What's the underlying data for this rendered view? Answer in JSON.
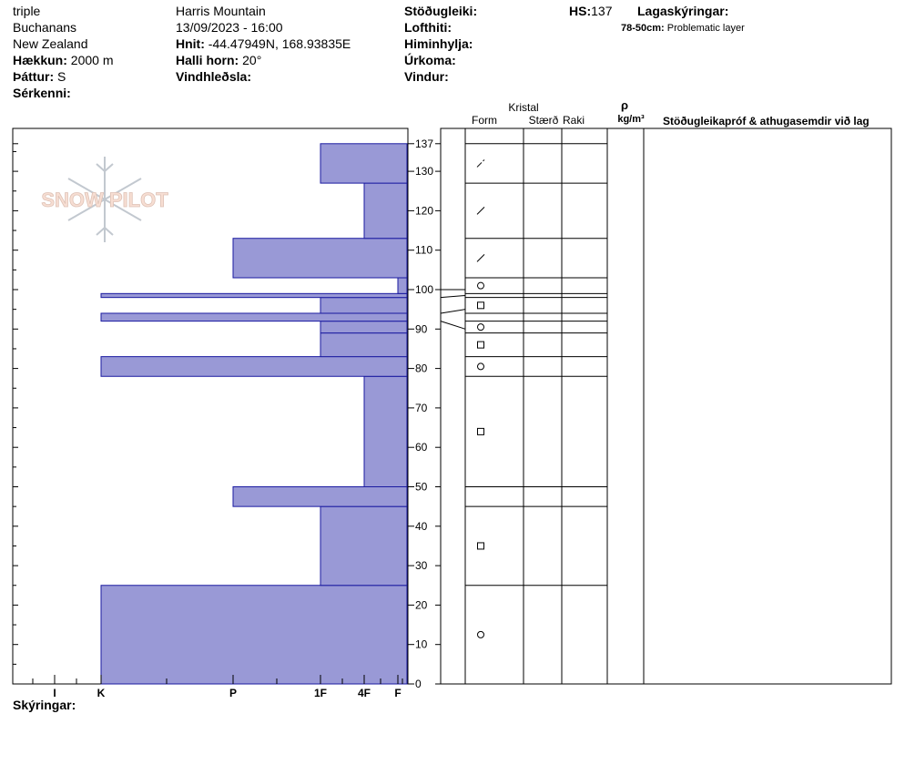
{
  "header": {
    "col1": [
      "triple",
      "Buchanans",
      "New Zealand"
    ],
    "elevation_label": "Hækkun:",
    "elevation_value": "2000 m",
    "aspect_label": "Þáttur:",
    "aspect_value": "S",
    "features_label": "Sérkenni:",
    "location": "Harris Mountain",
    "datetime": "13/09/2023 - 16:00",
    "coords_label": "Hnit:",
    "coords_value": "-44.47949N, 168.93835E",
    "slope_label": "Halli horn:",
    "slope_value": "20°",
    "wind_load_label": "Vindhleðsla:",
    "stability_label": "Stöðugleiki:",
    "air_temp_label": "Lofthiti:",
    "sky_label": "Himinhylja:",
    "precip_label": "Úrkoma:",
    "wind_label": "Vindur:",
    "hs_label": "HS:",
    "hs_value": "137",
    "legend_label": "Lagaskýringar:",
    "layer_note_range": "78-50cm:",
    "layer_note_text": "Problematic layer"
  },
  "notes_label": "Skýringar:",
  "logo_text": "SNOW PILOT",
  "table_headers": {
    "crystal": "Kristal",
    "form": "Form",
    "size": "Stærð",
    "moisture": "Raki",
    "density_symbol": "ρ",
    "density_unit": "kg/m³",
    "comments": "Stöðugleikapróf & athugasemdir við lag"
  },
  "chart_data": {
    "type": "bar",
    "orientation": "horizontal",
    "ylim": [
      0,
      137
    ],
    "yticks": [
      0,
      10,
      20,
      30,
      40,
      50,
      60,
      70,
      80,
      90,
      100,
      110,
      120,
      130,
      137
    ],
    "x_categories": [
      "I",
      "K",
      "P",
      "1F",
      "4F",
      "F"
    ],
    "layers": [
      {
        "bottom": 0,
        "top": 25,
        "hardness": "K",
        "form": "round"
      },
      {
        "bottom": 25,
        "top": 45,
        "hardness": "1F",
        "form": "faceted"
      },
      {
        "bottom": 45,
        "top": 50,
        "hardness": "P",
        "form": ""
      },
      {
        "bottom": 50,
        "top": 78,
        "hardness": "4F",
        "form": "faceted"
      },
      {
        "bottom": 78,
        "top": 83,
        "hardness": "K",
        "form": "round"
      },
      {
        "bottom": 83,
        "top": 89,
        "hardness": "1F",
        "form": "faceted"
      },
      {
        "bottom": 89,
        "top": 92,
        "hardness": "1F",
        "form": "round"
      },
      {
        "bottom": 92,
        "top": 94,
        "hardness": "K",
        "form": ""
      },
      {
        "bottom": 94,
        "top": 98,
        "hardness": "1F",
        "form": "faceted"
      },
      {
        "bottom": 98,
        "top": 99,
        "hardness": "K",
        "form": ""
      },
      {
        "bottom": 99,
        "top": 103,
        "hardness": "F",
        "form": "round"
      },
      {
        "bottom": 103,
        "top": 113,
        "hardness": "P",
        "form": "slash"
      },
      {
        "bottom": 113,
        "top": 127,
        "hardness": "4F",
        "form": "slash"
      },
      {
        "bottom": 127,
        "top": 137,
        "hardness": "1F",
        "form": "slash-dot"
      }
    ],
    "bar_color": "#9999d6",
    "bar_stroke": "#1a1aa0"
  }
}
